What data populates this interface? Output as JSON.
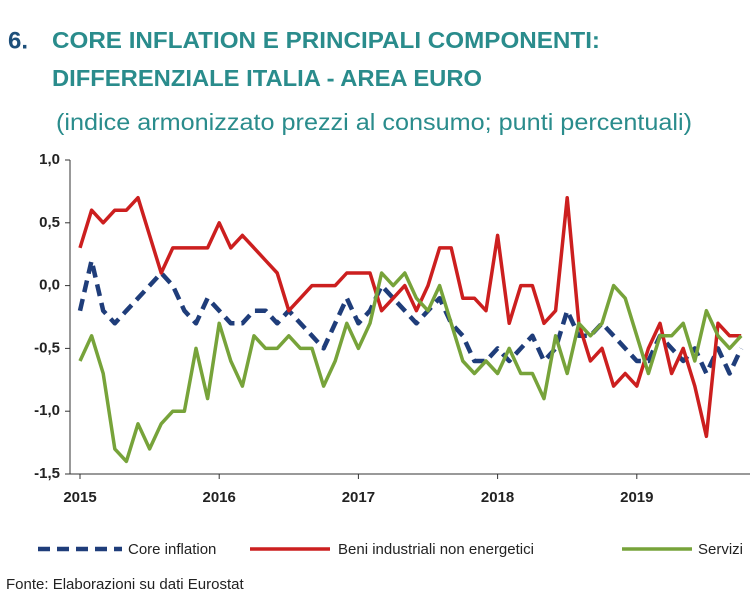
{
  "chart_data": {
    "type": "line",
    "title_number": "6.",
    "title": [
      "CORE INFLATION E PRINCIPALI COMPONENTI:",
      "DIFFERENZIALE ITALIA - AREA EURO"
    ],
    "subtitle": "(indice armonizzato prezzi al consumo; punti percentuali)",
    "source": "Fonte: Elaborazioni su dati Eurostat",
    "categories": [
      "2015",
      null,
      null,
      null,
      null,
      null,
      null,
      null,
      null,
      null,
      null,
      null,
      "2016",
      null,
      null,
      null,
      null,
      null,
      null,
      null,
      null,
      null,
      null,
      null,
      "2017",
      null,
      null,
      null,
      null,
      null,
      null,
      null,
      null,
      null,
      null,
      null,
      "2018",
      null,
      null,
      null,
      null,
      null,
      null,
      null,
      null,
      null,
      null,
      null,
      "2019",
      null,
      null,
      null,
      null,
      null,
      null,
      null,
      null,
      null
    ],
    "series": [
      {
        "name": "Core inflation",
        "color": "#1f3d7a",
        "dashed": true,
        "values": [
          -0.2,
          0.2,
          -0.2,
          -0.3,
          -0.2,
          -0.1,
          0.0,
          0.1,
          0.0,
          -0.2,
          -0.3,
          -0.1,
          -0.2,
          -0.3,
          -0.3,
          -0.2,
          -0.2,
          -0.3,
          -0.2,
          -0.3,
          -0.4,
          -0.5,
          -0.3,
          -0.1,
          -0.3,
          -0.2,
          0.0,
          -0.1,
          -0.2,
          -0.3,
          -0.2,
          -0.1,
          -0.3,
          -0.4,
          -0.6,
          -0.6,
          -0.5,
          -0.6,
          -0.5,
          -0.4,
          -0.6,
          -0.5,
          -0.2,
          -0.4,
          -0.4,
          -0.3,
          -0.4,
          -0.5,
          -0.6,
          -0.6,
          -0.4,
          -0.5,
          -0.6,
          -0.5,
          -0.7,
          -0.5,
          -0.7,
          -0.5
        ]
      },
      {
        "name": "Beni industriali non energetici",
        "color": "#cc1f1f",
        "dashed": false,
        "values": [
          0.3,
          0.6,
          0.5,
          0.6,
          0.6,
          0.7,
          0.4,
          0.1,
          0.3,
          0.3,
          0.3,
          0.3,
          0.5,
          0.3,
          0.4,
          0.3,
          0.2,
          0.1,
          -0.2,
          -0.1,
          0.0,
          0.0,
          0.0,
          0.1,
          0.1,
          0.1,
          -0.2,
          -0.1,
          0.0,
          -0.2,
          0.0,
          0.3,
          0.3,
          -0.1,
          -0.1,
          -0.2,
          0.4,
          -0.3,
          0.0,
          0.0,
          -0.3,
          -0.2,
          0.7,
          -0.3,
          -0.6,
          -0.5,
          -0.8,
          -0.7,
          -0.8,
          -0.5,
          -0.3,
          -0.7,
          -0.5,
          -0.8,
          -1.2,
          -0.3,
          -0.4,
          -0.4
        ]
      },
      {
        "name": "Servizi",
        "color": "#77a33a",
        "dashed": false,
        "values": [
          -0.6,
          -0.4,
          -0.7,
          -1.3,
          -1.4,
          -1.1,
          -1.3,
          -1.1,
          -1.0,
          -1.0,
          -0.5,
          -0.9,
          -0.3,
          -0.6,
          -0.8,
          -0.4,
          -0.5,
          -0.5,
          -0.4,
          -0.5,
          -0.5,
          -0.8,
          -0.6,
          -0.3,
          -0.5,
          -0.3,
          0.1,
          0.0,
          0.1,
          -0.1,
          -0.2,
          0.0,
          -0.3,
          -0.6,
          -0.7,
          -0.6,
          -0.7,
          -0.5,
          -0.7,
          -0.7,
          -0.9,
          -0.4,
          -0.7,
          -0.3,
          -0.4,
          -0.3,
          0.0,
          -0.1,
          -0.4,
          -0.7,
          -0.4,
          -0.4,
          -0.3,
          -0.6,
          -0.2,
          -0.4,
          -0.5,
          -0.4
        ]
      }
    ],
    "ylim": [
      -1.5,
      1.0
    ],
    "yticks": [
      {
        "value": 1.0,
        "label": "1,0"
      },
      {
        "value": 0.5,
        "label": "0,5"
      },
      {
        "value": 0.0,
        "label": "0,0"
      },
      {
        "value": -0.5,
        "label": "-0,5"
      },
      {
        "value": -1.0,
        "label": "-1,0"
      },
      {
        "value": -1.5,
        "label": "-1,5"
      }
    ],
    "grid": false,
    "legend": "bottom"
  }
}
